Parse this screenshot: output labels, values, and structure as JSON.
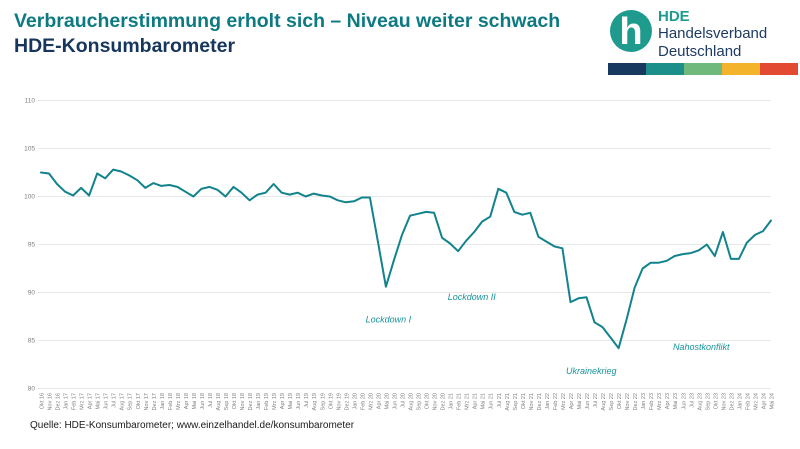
{
  "header": {
    "title": "Verbraucherstimmung erholt sich – Niveau weiter schwach",
    "subtitle": "HDE-Konsumbarometer"
  },
  "logo": {
    "monogram": "h",
    "name": "HDE",
    "org_line1": "Handelsverband",
    "org_line2": "Deutschland",
    "mark_color": "#1f9b8e",
    "bar_colors": [
      "#17395f",
      "#1d8f8a",
      "#70b97d",
      "#f3b32a",
      "#e24b31"
    ]
  },
  "source": {
    "text": "Quelle: HDE-Konsumbarometer; www.einzelhandel.de/konsumbarometer"
  },
  "chart_data": {
    "type": "line",
    "title": "HDE-Konsumbarometer",
    "xlabel": "",
    "ylabel": "",
    "ylim": [
      80,
      110
    ],
    "yticks": [
      80,
      85,
      90,
      95,
      100,
      105,
      110
    ],
    "grid": true,
    "line_color": "#12838c",
    "tick_color": "#7f7f7f",
    "grid_color": "#e8e8e8",
    "annotation_color": "#16939b",
    "x": [
      "Okt 16",
      "Nov 16",
      "Dez 16",
      "Jan 17",
      "Feb 17",
      "Mrz 17",
      "Apr 17",
      "Mai 17",
      "Jun 17",
      "Jul 17",
      "Aug 17",
      "Sep 17",
      "Okt 17",
      "Nov 17",
      "Dez 17",
      "Jan 18",
      "Feb 18",
      "Mrz 18",
      "Apr 18",
      "Mai 18",
      "Jun 18",
      "Jul 18",
      "Aug 18",
      "Sep 18",
      "Okt 18",
      "Nov 18",
      "Dez 18",
      "Jan 19",
      "Feb 19",
      "Mrz 19",
      "Apr 19",
      "Mai 19",
      "Jun 19",
      "Jul 19",
      "Aug 19",
      "Sep 19",
      "Okt 19",
      "Nov 19",
      "Dez 19",
      "Jan 20",
      "Feb 20",
      "Mrz 20",
      "Apr 20",
      "Mai 20",
      "Jun 20",
      "Jul 20",
      "Aug 20",
      "Sep 20",
      "Okt 20",
      "Nov 20",
      "Dez 20",
      "Jan 21",
      "Feb 21",
      "Mrz 21",
      "Apr 21",
      "Mai 21",
      "Jun 21",
      "Jul 21",
      "Aug 21",
      "Sep 21",
      "Okt 21",
      "Nov 21",
      "Dez 21",
      "Jan 22",
      "Feb 22",
      "Mrz 22",
      "Apr 22",
      "Mai 22",
      "Jun 22",
      "Jul 22",
      "Aug 22",
      "Sep 22",
      "Okt 22",
      "Nov 22",
      "Dez 22",
      "Jan 23",
      "Feb 23",
      "Mrz 23",
      "Apr 23",
      "Mai 23",
      "Jun 23",
      "Jul 23",
      "Aug 23",
      "Sep 23",
      "Okt 23",
      "Nov 23",
      "Dez 23",
      "Jan 24",
      "Feb 24",
      "Mrz 24",
      "Apr 24",
      "Mai 24"
    ],
    "values": [
      102.5,
      102.4,
      101.3,
      100.5,
      100.1,
      100.9,
      100.1,
      102.4,
      101.9,
      102.8,
      102.6,
      102.2,
      101.7,
      100.9,
      101.4,
      101.1,
      101.2,
      101.0,
      100.5,
      100.0,
      100.8,
      101.0,
      100.7,
      100.0,
      101.0,
      100.4,
      99.6,
      100.2,
      100.4,
      101.3,
      100.4,
      100.2,
      100.4,
      100.0,
      100.3,
      100.1,
      100.0,
      99.6,
      99.4,
      99.5,
      99.9,
      99.9,
      95.3,
      90.6,
      93.4,
      96.0,
      98.0,
      98.2,
      98.4,
      98.3,
      95.7,
      95.1,
      94.3,
      95.4,
      96.3,
      97.4,
      97.9,
      100.8,
      100.4,
      98.4,
      98.1,
      98.3,
      95.8,
      95.3,
      94.8,
      94.6,
      89.0,
      89.4,
      89.5,
      86.9,
      86.4,
      85.3,
      84.2,
      87.2,
      90.5,
      92.5,
      93.1,
      93.1,
      93.3,
      93.8,
      94.0,
      94.1,
      94.4,
      95.0,
      93.8,
      96.3,
      93.5,
      93.5,
      95.2,
      96.0,
      96.4,
      97.5
    ],
    "annotations": [
      {
        "text": "Lockdown I",
        "x_index": 43.3,
        "y_value": 86.9
      },
      {
        "text": "Lockdown II",
        "x_index": 53.7,
        "y_value": 89.2
      },
      {
        "text": "Ukrainekrieg",
        "x_index": 68.6,
        "y_value": 81.5
      },
      {
        "text": "Nahostkonflikt",
        "x_index": 82.3,
        "y_value": 84.0
      }
    ],
    "legend": null
  }
}
